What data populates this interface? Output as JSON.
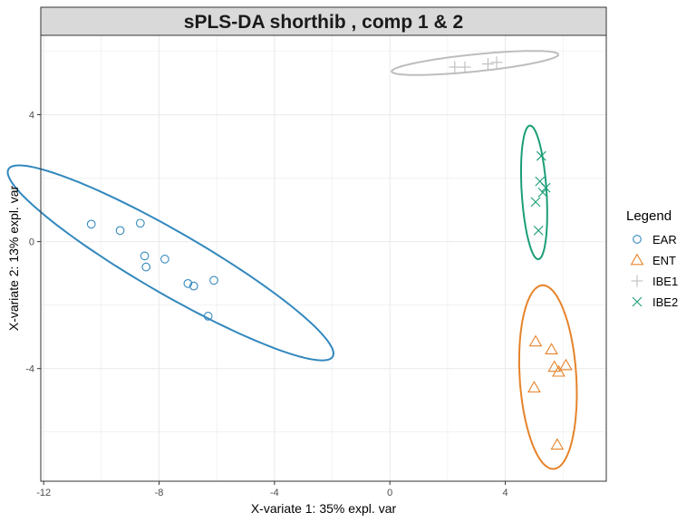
{
  "chart_data": {
    "type": "scatter",
    "title": "sPLS-DA shorthib , comp 1 & 2",
    "xlabel": "X-variate 1: 35% expl. var",
    "ylabel": "X-variate 2: 13% expl. var",
    "xlim": [
      -12.1,
      7.5
    ],
    "ylim": [
      -7.55,
      6.5
    ],
    "xticks": [
      -12,
      -8,
      -4,
      0,
      4
    ],
    "xtick_labels": [
      "-12",
      "-8",
      "-4",
      "0",
      "4"
    ],
    "yticks": [
      -4,
      0,
      4
    ],
    "ytick_labels": [
      "-4",
      "0",
      "4"
    ],
    "grid": true,
    "legend": {
      "title": "Legend",
      "placement": "right"
    },
    "series": [
      {
        "name": "EAR",
        "color": "#3288bd",
        "marker": "circle",
        "points": [
          [
            -10.35,
            0.55
          ],
          [
            -9.35,
            0.35
          ],
          [
            -8.65,
            0.58
          ],
          [
            -8.5,
            -0.45
          ],
          [
            -8.45,
            -0.8
          ],
          [
            -7.8,
            -0.55
          ],
          [
            -7.0,
            -1.32
          ],
          [
            -6.8,
            -1.4
          ],
          [
            -6.1,
            -1.22
          ],
          [
            -6.3,
            -2.35
          ]
        ],
        "ellipse": {
          "center": [
            -7.6,
            -0.67
          ],
          "angle_deg": -27.6,
          "rx": 6.35,
          "ry": 1.0
        }
      },
      {
        "name": "ENT",
        "color": "#e6832a",
        "marker": "triangle",
        "points": [
          [
            5.05,
            -3.15
          ],
          [
            5.6,
            -3.4
          ],
          [
            5.7,
            -3.95
          ],
          [
            5.85,
            -4.1
          ],
          [
            6.1,
            -3.9
          ],
          [
            5.0,
            -4.6
          ],
          [
            5.8,
            -6.4
          ]
        ],
        "ellipse": {
          "center": [
            5.48,
            -4.27
          ],
          "angle_deg": -86,
          "rx": 2.9,
          "ry": 0.98
        }
      },
      {
        "name": "IBE1",
        "color": "#bdbdbd",
        "marker": "plus",
        "points": [
          [
            2.6,
            5.5
          ],
          [
            3.4,
            5.6
          ],
          [
            3.7,
            5.65
          ],
          [
            2.25,
            5.5
          ]
        ],
        "ellipse": {
          "center": [
            2.95,
            5.63
          ],
          "angle_deg": 5.3,
          "rx": 2.9,
          "ry": 0.27
        }
      },
      {
        "name": "IBE2",
        "color": "#1b9e77",
        "marker": "x",
        "points": [
          [
            5.25,
            2.7
          ],
          [
            5.2,
            1.9
          ],
          [
            5.3,
            1.55
          ],
          [
            5.05,
            1.25
          ],
          [
            5.15,
            0.35
          ],
          [
            5.4,
            1.7
          ]
        ],
        "ellipse": {
          "center": [
            5.0,
            1.55
          ],
          "angle_deg": -86,
          "rx": 2.11,
          "ry": 0.43
        }
      }
    ]
  }
}
